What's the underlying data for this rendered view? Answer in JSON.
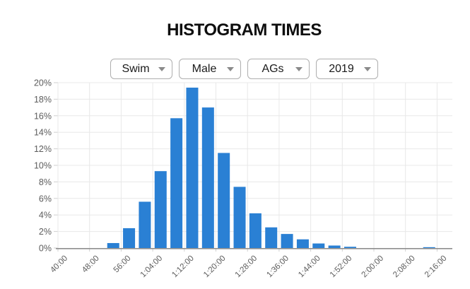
{
  "page": {
    "title": "HISTOGRAM TIMES"
  },
  "controls": [
    {
      "name": "sport",
      "value": "Swim"
    },
    {
      "name": "gender",
      "value": "Male"
    },
    {
      "name": "category",
      "value": "AGs"
    },
    {
      "name": "year",
      "value": "2019"
    }
  ],
  "chart_data": {
    "type": "bar",
    "title": "HISTOGRAM TIMES",
    "xlabel": "",
    "ylabel": "",
    "grid": true,
    "legend": "none",
    "y_axis": {
      "min": 0,
      "max": 20,
      "step": 2,
      "unit": "%",
      "ylim": [
        0,
        20
      ]
    },
    "x_ticks": [
      {
        "label": "40:00",
        "minutes": 40
      },
      {
        "label": "48:00",
        "minutes": 48
      },
      {
        "label": "56:00",
        "minutes": 56
      },
      {
        "label": "1:04:00",
        "minutes": 64
      },
      {
        "label": "1:12:00",
        "minutes": 72
      },
      {
        "label": "1:20:00",
        "minutes": 80
      },
      {
        "label": "1:28:00",
        "minutes": 88
      },
      {
        "label": "1:36:00",
        "minutes": 96
      },
      {
        "label": "1:44:00",
        "minutes": 104
      },
      {
        "label": "1:52:00",
        "minutes": 112
      },
      {
        "label": "2:00:00",
        "minutes": 120
      },
      {
        "label": "2:08:00",
        "minutes": 128
      },
      {
        "label": "2:16:00",
        "minutes": 136
      }
    ],
    "bars": [
      {
        "bin": "52:00-56:00",
        "bin_center_minutes": 54,
        "pct": 0.6
      },
      {
        "bin": "56:00-1:00:00",
        "bin_center_minutes": 58,
        "pct": 2.4
      },
      {
        "bin": "1:00:00-1:04:00",
        "bin_center_minutes": 62,
        "pct": 5.6
      },
      {
        "bin": "1:04:00-1:08:00",
        "bin_center_minutes": 66,
        "pct": 9.3
      },
      {
        "bin": "1:08:00-1:12:00",
        "bin_center_minutes": 70,
        "pct": 15.7
      },
      {
        "bin": "1:12:00-1:16:00",
        "bin_center_minutes": 74,
        "pct": 19.4
      },
      {
        "bin": "1:16:00-1:20:00",
        "bin_center_minutes": 78,
        "pct": 17.0
      },
      {
        "bin": "1:20:00-1:24:00",
        "bin_center_minutes": 82,
        "pct": 11.5
      },
      {
        "bin": "1:24:00-1:28:00",
        "bin_center_minutes": 86,
        "pct": 7.4
      },
      {
        "bin": "1:28:00-1:32:00",
        "bin_center_minutes": 90,
        "pct": 4.2
      },
      {
        "bin": "1:32:00-1:36:00",
        "bin_center_minutes": 94,
        "pct": 2.5
      },
      {
        "bin": "1:36:00-1:40:00",
        "bin_center_minutes": 98,
        "pct": 1.7
      },
      {
        "bin": "1:40:00-1:44:00",
        "bin_center_minutes": 102,
        "pct": 1.05
      },
      {
        "bin": "1:44:00-1:48:00",
        "bin_center_minutes": 106,
        "pct": 0.55
      },
      {
        "bin": "1:48:00-1:52:00",
        "bin_center_minutes": 110,
        "pct": 0.3
      },
      {
        "bin": "1:52:00-1:56:00",
        "bin_center_minutes": 114,
        "pct": 0.15
      },
      {
        "bin": "1:56:00-2:00:00",
        "bin_center_minutes": 118,
        "pct": 0
      },
      {
        "bin": "2:00:00-2:04:00",
        "bin_center_minutes": 122,
        "pct": 0
      },
      {
        "bin": "2:04:00-2:08:00",
        "bin_center_minutes": 126,
        "pct": 0
      },
      {
        "bin": "2:08:00-2:12:00",
        "bin_center_minutes": 130,
        "pct": 0
      },
      {
        "bin": "2:12:00-2:16:00",
        "bin_center_minutes": 134,
        "pct": 0.1
      }
    ],
    "colors": {
      "bar": "#2a80d4",
      "grid": "#e8e8e8",
      "tick": "#cfcfcf",
      "axis": "#8f8f8f",
      "tick_label": "#5c5c5c",
      "title_text": "#0e0e0e"
    }
  }
}
